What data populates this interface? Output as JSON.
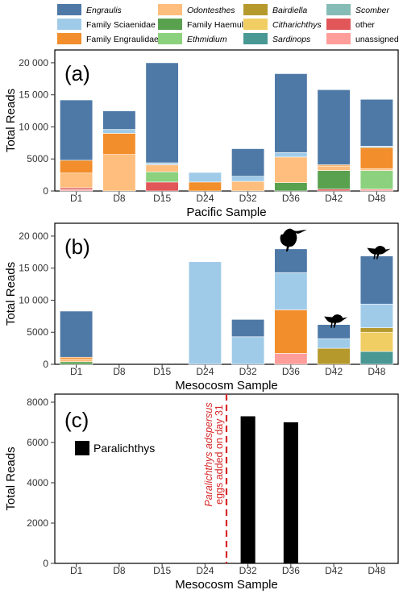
{
  "legend": {
    "items": [
      {
        "label": "Engraulis",
        "color": "#4e79a7",
        "italic": true
      },
      {
        "label": "Family Sciaenidae",
        "color": "#a0cbe8",
        "italic": false
      },
      {
        "label": "Family Engraulidae",
        "color": "#f28e2b",
        "italic": false
      },
      {
        "label": "Odontesthes",
        "color": "#ffbe7d",
        "italic": true
      },
      {
        "label": "Family Haemulidae",
        "color": "#59a14f",
        "italic": false
      },
      {
        "label": "Ethmidium",
        "color": "#8cd17d",
        "italic": true
      },
      {
        "label": "Bairdiella",
        "color": "#b6992d",
        "italic": true
      },
      {
        "label": "Citharichthys",
        "color": "#f1ce63",
        "italic": true
      },
      {
        "label": "Sardinops",
        "color": "#499894",
        "italic": true
      },
      {
        "label": "Scomber",
        "color": "#86bcb6",
        "italic": true
      },
      {
        "label": "other",
        "color": "#e15759",
        "italic": false
      },
      {
        "label": "unassigned",
        "color": "#ff9d9a",
        "italic": false
      }
    ]
  },
  "chart_data": [
    {
      "type": "bar",
      "stacked": true,
      "panel_label": "(a)",
      "xlabel": "Pacific Sample",
      "ylabel": "Total Reads",
      "categories": [
        "D1",
        "D8",
        "D15",
        "D24",
        "D32",
        "D36",
        "D42",
        "D48"
      ],
      "ylim": [
        0,
        22000
      ],
      "yticks": [
        0,
        5000,
        10000,
        15000,
        20000
      ],
      "ytick_labels": [
        "0",
        "5000",
        "10 000",
        "15 000",
        "20 000"
      ],
      "series": [
        {
          "name": "unassigned",
          "values": [
            200,
            0,
            0,
            0,
            0,
            0,
            0,
            300
          ]
        },
        {
          "name": "other",
          "values": [
            300,
            0,
            1400,
            0,
            0,
            0,
            300,
            0
          ]
        },
        {
          "name": "Sardinops",
          "values": [
            0,
            0,
            0,
            0,
            0,
            0,
            0,
            0
          ]
        },
        {
          "name": "Citharichthys",
          "values": [
            0,
            0,
            0,
            0,
            0,
            0,
            0,
            0
          ]
        },
        {
          "name": "Bairdiella",
          "values": [
            0,
            0,
            0,
            0,
            0,
            0,
            0,
            0
          ]
        },
        {
          "name": "Scomber",
          "values": [
            0,
            0,
            0,
            0,
            0,
            0,
            0,
            0
          ]
        },
        {
          "name": "Ethmidium",
          "values": [
            0,
            0,
            1600,
            0,
            0,
            0,
            0,
            2900
          ]
        },
        {
          "name": "Family Haemulidae",
          "values": [
            0,
            0,
            0,
            0,
            0,
            1300,
            2900,
            0
          ]
        },
        {
          "name": "Odontesthes",
          "values": [
            2300,
            5700,
            1100,
            0,
            1500,
            4000,
            700,
            300
          ]
        },
        {
          "name": "Family Engraulidae",
          "values": [
            2000,
            3300,
            0,
            1400,
            0,
            0,
            200,
            3300
          ]
        },
        {
          "name": "Family Sciaenidae",
          "values": [
            0,
            600,
            300,
            1500,
            800,
            700,
            0,
            200
          ]
        },
        {
          "name": "Engraulis",
          "values": [
            9400,
            2900,
            15600,
            0,
            4300,
            12300,
            11700,
            7300
          ]
        }
      ]
    },
    {
      "type": "bar",
      "stacked": true,
      "panel_label": "(b)",
      "xlabel": "Mesocosm Sample",
      "ylabel": "Total Reads",
      "categories": [
        "D1",
        "D8",
        "D15",
        "D24",
        "D32",
        "D36",
        "D42",
        "D48"
      ],
      "ylim": [
        0,
        22000
      ],
      "yticks": [
        0,
        5000,
        10000,
        15000,
        20000
      ],
      "ytick_labels": [
        "0",
        "5000",
        "10 000",
        "15 000",
        "20 000"
      ],
      "birds": [
        "D36",
        "D42",
        "D48"
      ],
      "series": [
        {
          "name": "unassigned",
          "values": [
            0,
            0,
            0,
            0,
            0,
            1700,
            0,
            0
          ]
        },
        {
          "name": "other",
          "values": [
            0,
            0,
            0,
            0,
            0,
            0,
            0,
            0
          ]
        },
        {
          "name": "Sardinops",
          "values": [
            0,
            0,
            0,
            0,
            0,
            0,
            0,
            2000
          ]
        },
        {
          "name": "Citharichthys",
          "values": [
            0,
            0,
            0,
            0,
            0,
            0,
            0,
            3000
          ]
        },
        {
          "name": "Bairdiella",
          "values": [
            0,
            0,
            0,
            0,
            0,
            0,
            2500,
            700
          ]
        },
        {
          "name": "Scomber",
          "values": [
            0,
            0,
            0,
            0,
            0,
            0,
            0,
            0
          ]
        },
        {
          "name": "Ethmidium",
          "values": [
            0,
            0,
            0,
            0,
            0,
            0,
            0,
            0
          ]
        },
        {
          "name": "Family Haemulidae",
          "values": [
            400,
            0,
            0,
            0,
            0,
            0,
            0,
            0
          ]
        },
        {
          "name": "Odontesthes",
          "values": [
            400,
            0,
            0,
            0,
            0,
            0,
            0,
            0
          ]
        },
        {
          "name": "Family Engraulidae",
          "values": [
            300,
            0,
            0,
            0,
            0,
            6800,
            0,
            0
          ]
        },
        {
          "name": "Family Sciaenidae",
          "values": [
            0,
            0,
            0,
            16000,
            4300,
            5800,
            1500,
            3700
          ]
        },
        {
          "name": "Engraulis",
          "values": [
            7200,
            0,
            0,
            0,
            2700,
            3700,
            2200,
            7500
          ]
        }
      ]
    },
    {
      "type": "bar",
      "panel_label": "(c)",
      "xlabel": "Mesocosm Sample",
      "ylabel": "Total Reads",
      "categories": [
        "D1",
        "D8",
        "D15",
        "D24",
        "D32",
        "D36",
        "D42",
        "D48"
      ],
      "ylim": [
        0,
        8400
      ],
      "yticks": [
        0,
        2000,
        4000,
        6000,
        8000
      ],
      "ytick_labels": [
        "0",
        "2000",
        "4000",
        "6000",
        "8000"
      ],
      "series": [
        {
          "name": "Paralichthys",
          "color": "#000000",
          "values": [
            0,
            0,
            0,
            0,
            7300,
            7000,
            0,
            0
          ]
        }
      ],
      "annotation": {
        "line1": "Paralichthys adspersus",
        "line2": "eggs added on day 31",
        "x_between": [
          "D24",
          "D32"
        ],
        "color": "#d62728"
      }
    }
  ]
}
